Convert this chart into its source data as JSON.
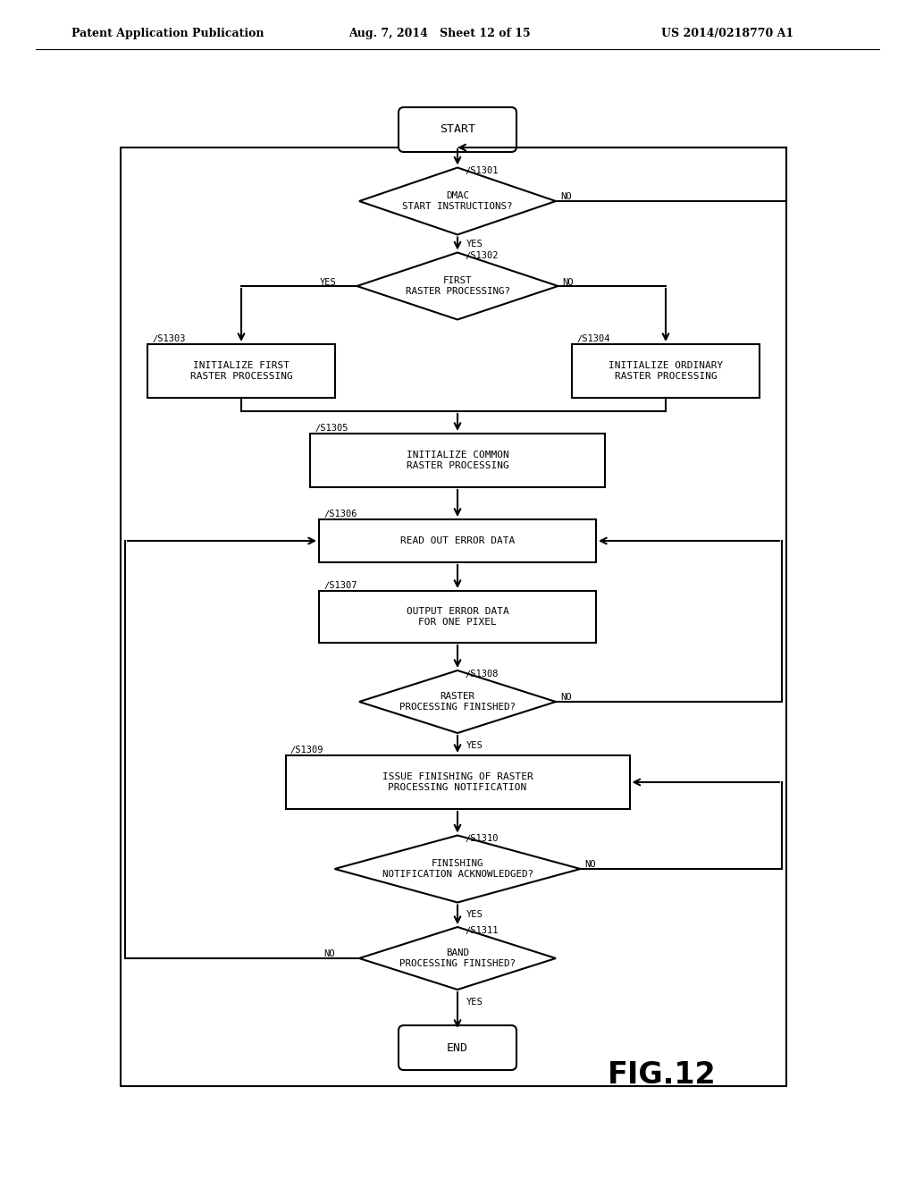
{
  "header_left": "Patent Application Publication",
  "header_mid": "Aug. 7, 2014   Sheet 12 of 15",
  "header_right": "US 2014/0218770 A1",
  "fig_label": "FIG.12",
  "bg": "#ffffff",
  "lc": "#000000"
}
